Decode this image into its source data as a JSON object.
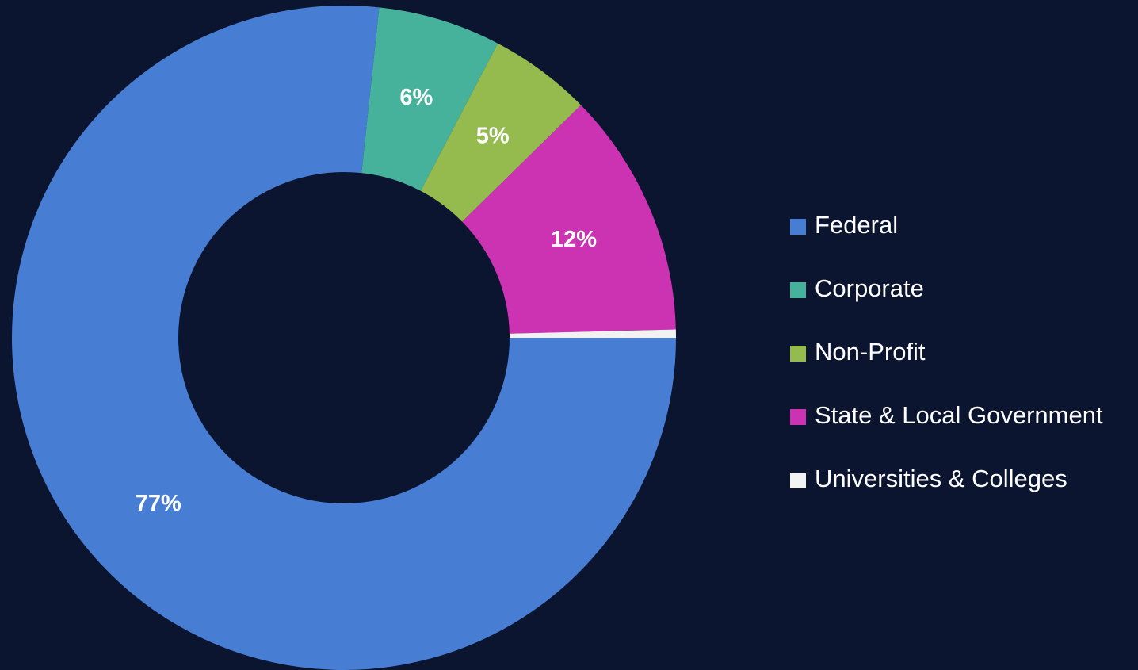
{
  "chart_data": {
    "type": "donut",
    "categories": [
      "Federal",
      "Corporate",
      "Non-Profit",
      "State & Local Government",
      "Universities & Colleges"
    ],
    "values": [
      77,
      6,
      5,
      12,
      0.4
    ],
    "value_labels": [
      "77%",
      "6%",
      "5%",
      "12%",
      null
    ],
    "colors": [
      "#477dd3",
      "#46b29c",
      "#95bb4f",
      "#cb33b3",
      "#f2f2f2"
    ],
    "start_angle": 90,
    "legend": "right"
  }
}
